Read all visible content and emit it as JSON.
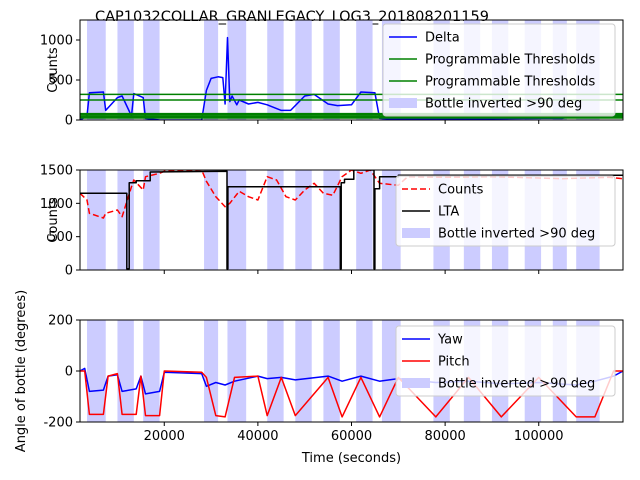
{
  "figure": {
    "title": "CAP1032COLLAR_GRANLEGACY_LOG3_201808201159"
  },
  "colors": {
    "delta": "#0000ff",
    "threshold": "#008000",
    "counts": "#ff0000",
    "lta": "#000000",
    "yaw": "#0000ff",
    "pitch": "#ff0000",
    "band": "#ccccff"
  },
  "chart_data": [
    {
      "type": "line",
      "title": "CAP1032COLLAR_GRANLEGACY_LOG3_201808201159",
      "xlabel": "",
      "ylabel": "Counts",
      "xlim": [
        2000,
        118000
      ],
      "ylim": [
        0,
        1250
      ],
      "yticks": [
        0,
        500,
        1000
      ],
      "xticks": [
        20000,
        40000,
        60000,
        80000,
        100000
      ],
      "legend": {
        "placement": "top-right",
        "entries": [
          "Delta",
          "Programmable Thresholds",
          "Programmable Thresholds",
          "Bottle inverted >90 deg"
        ]
      },
      "series": [
        {
          "name": "Delta",
          "x": [
            2000,
            3500,
            4000,
            7000,
            7500,
            10000,
            11000,
            13000,
            13500,
            15500,
            16000,
            19000,
            20000,
            28000,
            29000,
            30000,
            31500,
            32500,
            33000,
            33500,
            34000,
            34500,
            35500,
            36000,
            38000,
            40000,
            42000,
            45000,
            47000,
            50000,
            52000,
            55000,
            57000,
            60000,
            62000,
            65000,
            66000,
            70000,
            80000,
            90000,
            100000,
            105000,
            108000,
            112000,
            115000,
            118000
          ],
          "y": [
            0,
            50,
            340,
            350,
            120,
            280,
            300,
            50,
            330,
            280,
            20,
            0,
            0,
            0,
            370,
            520,
            540,
            530,
            200,
            1030,
            230,
            300,
            190,
            250,
            200,
            220,
            190,
            120,
            120,
            300,
            320,
            200,
            180,
            190,
            350,
            340,
            20,
            10,
            15,
            15,
            20,
            20,
            60,
            80,
            40,
            50
          ]
        },
        {
          "name": "Programmable Thresholds",
          "x": [
            2000,
            118000
          ],
          "y": [
            320,
            320
          ]
        },
        {
          "name": "Programmable Thresholds",
          "x": [
            2000,
            118000
          ],
          "y": [
            250,
            250
          ]
        },
        {
          "name": "",
          "x": [
            2000,
            118000
          ],
          "y": [
            70,
            70
          ]
        },
        {
          "name": "",
          "x": [
            2000,
            118000
          ],
          "y": [
            35,
            35
          ]
        }
      ]
    },
    {
      "type": "line",
      "title": "",
      "xlabel": "",
      "ylabel": "Counts",
      "xlim": [
        2000,
        118000
      ],
      "ylim": [
        0,
        1500
      ],
      "yticks": [
        0,
        500,
        1000,
        1500
      ],
      "xticks": [
        20000,
        40000,
        60000,
        80000,
        100000
      ],
      "legend": {
        "placement": "center-right",
        "entries": [
          "Counts",
          "LTA",
          "Bottle inverted >90 deg"
        ]
      },
      "series": [
        {
          "name": "Counts",
          "x": [
            2000,
            3500,
            4000,
            7000,
            7500,
            10000,
            11000,
            13000,
            13500,
            15500,
            16000,
            19000,
            20000,
            28000,
            29000,
            31000,
            33000,
            34000,
            36000,
            38000,
            40000,
            42000,
            44000,
            46000,
            48000,
            50000,
            52000,
            54000,
            56000,
            58000,
            60000,
            62000,
            64000,
            66000,
            70000,
            72000,
            80000,
            90000,
            100000,
            105000,
            110000,
            115000,
            118000
          ],
          "y": [
            1150,
            1050,
            850,
            780,
            850,
            900,
            800,
            1250,
            1350,
            1200,
            1400,
            1450,
            1480,
            1500,
            1330,
            1100,
            950,
            1000,
            1180,
            1100,
            1050,
            1400,
            1350,
            1100,
            1050,
            1200,
            1300,
            1150,
            1120,
            1400,
            1500,
            1450,
            1500,
            1300,
            1270,
            1400,
            1390,
            1400,
            1380,
            1370,
            1380,
            1390,
            1370
          ]
        },
        {
          "name": "LTA",
          "x": [
            2000,
            12000,
            12000,
            12500,
            12500,
            14000,
            14000,
            17000,
            17000,
            33400,
            33400,
            33600,
            33600,
            57600,
            57600,
            57800,
            57800,
            58500,
            58500,
            60500,
            60500,
            64800,
            64800,
            65000,
            65000,
            66000,
            66000,
            70000,
            70000,
            118000
          ],
          "y": [
            1150,
            1150,
            20,
            20,
            1310,
            1310,
            1340,
            1340,
            1470,
            1480,
            20,
            20,
            1250,
            1250,
            20,
            20,
            1310,
            1310,
            1360,
            1360,
            1500,
            1500,
            20,
            20,
            1220,
            1220,
            1400,
            1400,
            1420,
            1420
          ]
        }
      ]
    },
    {
      "type": "line",
      "title": "",
      "xlabel": "Time (seconds)",
      "ylabel": "Angle of bottle (degrees)",
      "xlim": [
        2000,
        118000
      ],
      "ylim": [
        -200,
        200
      ],
      "yticks": [
        -200,
        0,
        200
      ],
      "xticks": [
        20000,
        40000,
        60000,
        80000,
        100000
      ],
      "legend": {
        "placement": "center-right",
        "entries": [
          "Yaw",
          "Pitch",
          "Bottle inverted >90 deg"
        ]
      },
      "series": [
        {
          "name": "Yaw",
          "x": [
            2000,
            3000,
            4000,
            7000,
            8000,
            10000,
            11000,
            14000,
            15000,
            16000,
            19000,
            20000,
            28000,
            29000,
            31000,
            33000,
            35000,
            40000,
            42000,
            45000,
            48000,
            55000,
            58000,
            62000,
            66000,
            70000,
            78000,
            85000,
            92000,
            100000,
            108000,
            112000,
            116000,
            118000
          ],
          "y": [
            0,
            10,
            -80,
            -75,
            -20,
            -15,
            -80,
            -70,
            -20,
            -90,
            -80,
            -5,
            -10,
            -60,
            -45,
            -55,
            -40,
            -20,
            -30,
            -25,
            -35,
            -20,
            -40,
            -20,
            -40,
            -30,
            -45,
            -40,
            -50,
            -45,
            -55,
            -40,
            -20,
            0
          ]
        },
        {
          "name": "Pitch",
          "x": [
            2000,
            3000,
            4000,
            7000,
            8000,
            10000,
            11000,
            14000,
            15000,
            16000,
            19000,
            20000,
            28000,
            29000,
            31000,
            33000,
            35000,
            40000,
            42000,
            45000,
            48000,
            55000,
            58000,
            62000,
            66000,
            70000,
            78000,
            85000,
            92000,
            100000,
            108000,
            112000,
            116000,
            118000
          ],
          "y": [
            0,
            0,
            -170,
            -170,
            -20,
            -10,
            -170,
            -170,
            -20,
            -175,
            -175,
            0,
            -5,
            -25,
            -175,
            -180,
            -25,
            -20,
            -175,
            -25,
            -175,
            -25,
            -180,
            -25,
            -180,
            -25,
            -180,
            -25,
            -180,
            -25,
            -180,
            -180,
            0,
            0
          ]
        }
      ]
    }
  ],
  "bands": [
    [
      3500,
      7500
    ],
    [
      10000,
      13500
    ],
    [
      15500,
      19000
    ],
    [
      28500,
      31500
    ],
    [
      33500,
      37500
    ],
    [
      42000,
      45500
    ],
    [
      48000,
      51500
    ],
    [
      54000,
      57500
    ],
    [
      61000,
      64500
    ],
    [
      66500,
      70500
    ],
    [
      77500,
      81000
    ],
    [
      84000,
      87500
    ],
    [
      90000,
      93500
    ],
    [
      97000,
      100500
    ],
    [
      103000,
      106000
    ],
    [
      108000,
      113000
    ]
  ]
}
